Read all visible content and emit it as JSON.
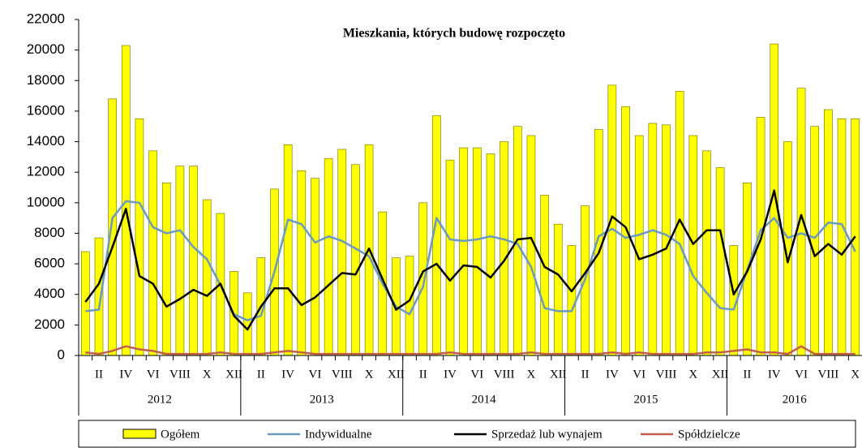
{
  "chart_data": {
    "type": "bar",
    "title": "Mieszkania, których budowę rozpoczęto",
    "categories": [
      null,
      "II",
      null,
      "IV",
      null,
      "VI",
      null,
      "VIII",
      null,
      "X",
      null,
      "XII",
      null,
      "II",
      null,
      "IV",
      null,
      "VI",
      null,
      "VIII",
      null,
      "X",
      null,
      "XII",
      null,
      "II",
      null,
      "IV",
      null,
      "VI",
      null,
      "VIII",
      null,
      "X",
      null,
      "XII",
      null,
      "II",
      null,
      "IV",
      null,
      "VI",
      null,
      "VIII",
      null,
      "X",
      null,
      "XII",
      null,
      "II",
      null,
      "IV",
      null,
      "VI",
      null,
      "VIII",
      null,
      "X"
    ],
    "years": [
      "2012",
      "2013",
      "2014",
      "2015",
      "2016"
    ],
    "ylim": [
      0,
      22000
    ],
    "yticks": [
      0,
      2000,
      4000,
      6000,
      8000,
      10000,
      12000,
      14000,
      16000,
      18000,
      20000,
      22000
    ],
    "series": [
      {
        "name": "Ogółem",
        "type": "bar",
        "color": "#ffff00",
        "values": [
          6800,
          7700,
          16800,
          20300,
          15500,
          13400,
          11300,
          12400,
          12400,
          10200,
          9300,
          5500,
          4100,
          6400,
          10900,
          13800,
          12100,
          11600,
          12900,
          13500,
          12500,
          13800,
          9400,
          6400,
          6500,
          10000,
          15700,
          12800,
          13600,
          13600,
          13200,
          14000,
          15000,
          14400,
          10500,
          8600,
          7200,
          9800,
          14800,
          17700,
          16300,
          14400,
          15200,
          15100,
          17300,
          14400,
          13400,
          12300,
          7200,
          11300,
          15600,
          20400,
          14000,
          17500,
          15000,
          16100,
          15500,
          15500
        ]
      },
      {
        "name": "Indywidualne",
        "type": "line",
        "color": "#6a9ac0",
        "values": [
          2900,
          3000,
          9000,
          10100,
          10000,
          8400,
          8000,
          8200,
          7100,
          6300,
          4600,
          2700,
          2300,
          2600,
          5500,
          8900,
          8600,
          7400,
          7800,
          7500,
          7000,
          6500,
          4700,
          3200,
          2700,
          4500,
          9000,
          7600,
          7500,
          7600,
          7800,
          7600,
          7300,
          5800,
          3100,
          2900,
          2900,
          5000,
          7800,
          8300,
          7700,
          7900,
          8200,
          7900,
          7300,
          5200,
          4100,
          3100,
          3000,
          5600,
          8200,
          9000,
          7700,
          8000,
          7700,
          8700,
          8600,
          6800
        ]
      },
      {
        "name": "Sprzedaż lub wynajem",
        "type": "line",
        "color": "#000000",
        "values": [
          3500,
          4700,
          7100,
          9600,
          5200,
          4700,
          3200,
          3700,
          4300,
          3900,
          4700,
          2600,
          1700,
          3200,
          4400,
          4400,
          3300,
          3800,
          4600,
          5400,
          5300,
          7000,
          5000,
          3000,
          3600,
          5500,
          6000,
          4900,
          5900,
          5800,
          5100,
          6200,
          7600,
          7700,
          5800,
          5300,
          4200,
          5400,
          6700,
          9100,
          8400,
          6300,
          6600,
          7000,
          8900,
          7300,
          8200,
          8200,
          4000,
          5500,
          7600,
          10800,
          6100,
          9200,
          6500,
          7300,
          6600,
          7800
        ]
      },
      {
        "name": "Spółdzielcze",
        "type": "line",
        "color": "#c0604a",
        "values": [
          200,
          100,
          300,
          600,
          400,
          300,
          100,
          100,
          100,
          100,
          200,
          100,
          100,
          100,
          200,
          300,
          200,
          100,
          100,
          100,
          100,
          100,
          100,
          100,
          100,
          100,
          100,
          200,
          100,
          100,
          100,
          100,
          100,
          200,
          100,
          100,
          100,
          100,
          100,
          200,
          100,
          200,
          100,
          100,
          100,
          100,
          200,
          200,
          300,
          400,
          200,
          200,
          100,
          600,
          100,
          100,
          100,
          100
        ]
      }
    ]
  }
}
